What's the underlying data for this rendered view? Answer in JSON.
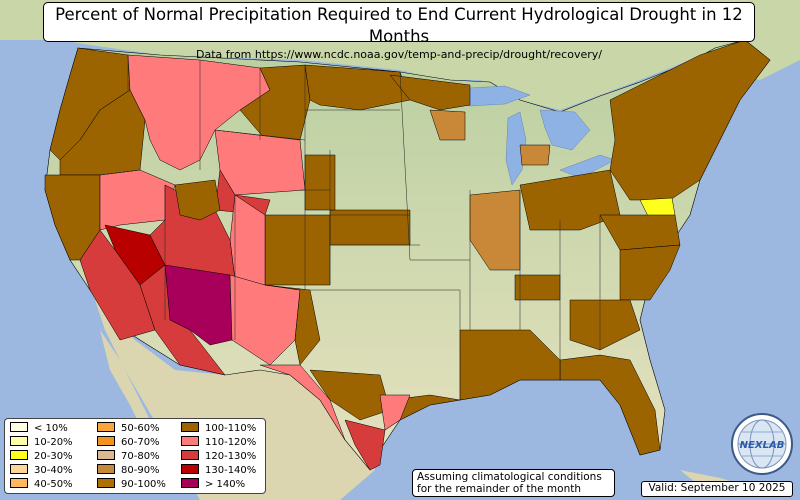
{
  "title": "Percent of Normal Precipitation Required to End Current Hydrological Drought in 12 Months",
  "subtitle": "Data from https://www.ncdc.noaa.gov/temp-and-precip/drought/recovery/",
  "note": [
    "Assuming climatological conditions",
    "for the remainder of the month"
  ],
  "valid": "Valid: September 10 2025",
  "logo": {
    "text": "NEXLAB",
    "icon": "globe-logo"
  },
  "legend": [
    {
      "label": "< 10%",
      "color": "#ffffe6"
    },
    {
      "label": "10-20%",
      "color": "#ffffa6"
    },
    {
      "label": "20-30%",
      "color": "#ffff1e"
    },
    {
      "label": "30-40%",
      "color": "#ffd39a"
    },
    {
      "label": "40-50%",
      "color": "#ffb760"
    },
    {
      "label": "50-60%",
      "color": "#f9a53c"
    },
    {
      "label": "60-70%",
      "color": "#f39221"
    },
    {
      "label": "70-80%",
      "color": "#d9b892"
    },
    {
      "label": "80-90%",
      "color": "#c98837"
    },
    {
      "label": "90-100%",
      "color": "#b06f00"
    },
    {
      "label": "100-110%",
      "color": "#9c6400"
    },
    {
      "label": "110-120%",
      "color": "#ff7a7a"
    },
    {
      "label": "120-130%",
      "color": "#d63c3c"
    },
    {
      "label": "130-140%",
      "color": "#b80000"
    },
    {
      "label": "> 140%",
      "color": "#a8005a"
    }
  ],
  "colors": {
    "ocean": "#9cb8e0",
    "land": "#e9e7c2",
    "border": "#000000"
  }
}
